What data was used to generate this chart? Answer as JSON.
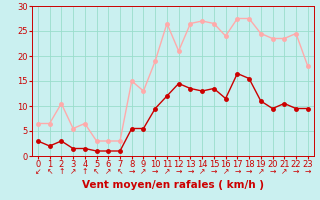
{
  "x": [
    0,
    1,
    2,
    3,
    4,
    5,
    6,
    7,
    8,
    9,
    10,
    11,
    12,
    13,
    14,
    15,
    16,
    17,
    18,
    19,
    20,
    21,
    22,
    23
  ],
  "wind_avg": [
    3,
    2,
    3,
    1.5,
    1.5,
    1,
    1,
    1,
    5.5,
    5.5,
    9.5,
    12,
    14.5,
    13.5,
    13,
    13.5,
    11.5,
    16.5,
    15.5,
    11,
    9.5,
    10.5,
    9.5,
    9.5
  ],
  "wind_gust": [
    6.5,
    6.5,
    10.5,
    5.5,
    6.5,
    3,
    3,
    3,
    15,
    13,
    19,
    26.5,
    21,
    26.5,
    27,
    26.5,
    24,
    27.5,
    27.5,
    24.5,
    23.5,
    23.5,
    24.5,
    18
  ],
  "wind_avg_color": "#cc0000",
  "wind_gust_color": "#ffaaaa",
  "bg_color": "#caf0f0",
  "grid_color": "#99ddcc",
  "xlabel": "Vent moyen/en rafales ( km/h )",
  "xlabel_color": "#cc0000",
  "tick_color": "#cc0000",
  "ylim": [
    0,
    30
  ],
  "yticks": [
    0,
    5,
    10,
    15,
    20,
    25,
    30
  ],
  "xlim": [
    -0.5,
    23.5
  ],
  "tick_fontsize": 6,
  "xlabel_fontsize": 7.5,
  "marker_size": 2.5,
  "line_width": 1.0,
  "arrows": [
    "↙",
    "↖",
    "↑",
    "↗",
    "↑",
    "↖",
    "↗",
    "↖",
    "→",
    "↗",
    "→",
    "↗",
    "→",
    "→",
    "↗",
    "→",
    "↗",
    "→",
    "→",
    "↗",
    "→",
    "↗",
    "→",
    "→"
  ]
}
